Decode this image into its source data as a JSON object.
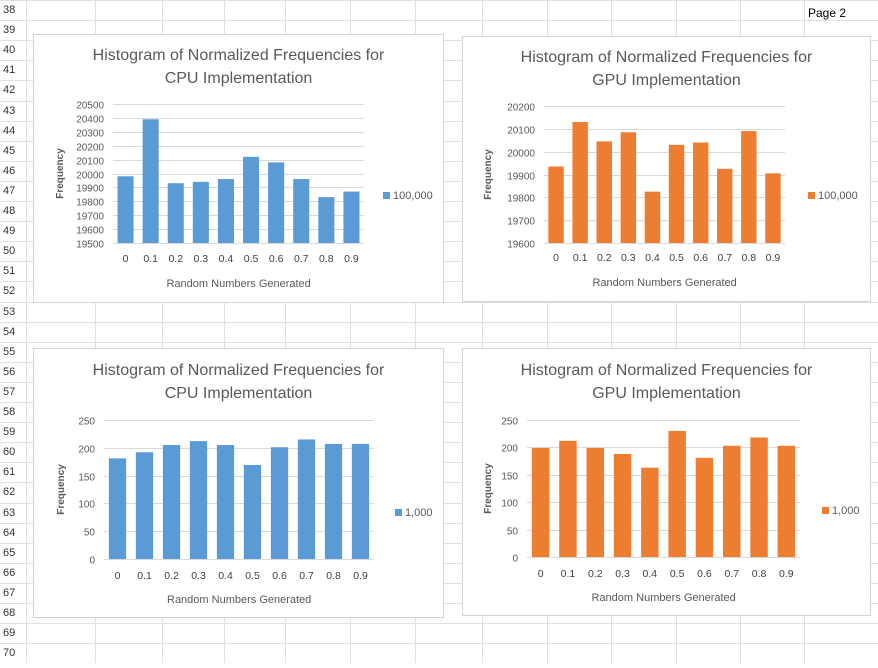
{
  "sheet": {
    "row_numbers": [
      "38",
      "39",
      "40",
      "41",
      "42",
      "43",
      "44",
      "45",
      "46",
      "47",
      "48",
      "49",
      "50",
      "51",
      "52",
      "53",
      "54",
      "55",
      "56",
      "57",
      "58",
      "59",
      "60",
      "61",
      "62",
      "63",
      "64",
      "65",
      "66",
      "67",
      "68",
      "69",
      "70"
    ],
    "page_label": "Page 2"
  },
  "colors": {
    "cpu": "#5B9BD5",
    "gpu": "#ED7D31",
    "grid": "#D9D9D9",
    "text": "#595959"
  },
  "charts": [
    {
      "title1": "Histogram of Normalized Frequencies for",
      "title2": "CPU Implementation",
      "ylabel": "Frequency",
      "xlabel": "Random Numbers Generated",
      "legend": "100,000",
      "color": "cpu"
    },
    {
      "title1": "Histogram of Normalized Frequencies for",
      "title2": "GPU Implementation",
      "ylabel": "Frequency",
      "xlabel": "Random Numbers Generated",
      "legend": "100,000",
      "color": "gpu"
    },
    {
      "title1": "Histogram of Normalized Frequencies for",
      "title2": "CPU Implementation",
      "ylabel": "Frequency",
      "xlabel": "Random Numbers Generated",
      "legend": "1,000",
      "color": "cpu"
    },
    {
      "title1": "Histogram of Normalized Frequencies for",
      "title2": "GPU Implementation",
      "ylabel": "Frequency",
      "xlabel": "Random Numbers Generated",
      "legend": "1,000",
      "color": "gpu"
    }
  ],
  "chart_data": [
    {
      "type": "bar",
      "title": "Histogram of Normalized Frequencies for CPU Implementation",
      "xlabel": "Random Numbers Generated",
      "ylabel": "Frequency",
      "categories": [
        "0",
        "0.1",
        "0.2",
        "0.3",
        "0.4",
        "0.5",
        "0.6",
        "0.7",
        "0.8",
        "0.9"
      ],
      "series": [
        {
          "name": "100,000",
          "values": [
            19980,
            20390,
            19930,
            19940,
            19960,
            20120,
            20080,
            19960,
            19830,
            19870
          ]
        }
      ],
      "ylim": [
        19500,
        20500
      ],
      "yticks": [
        19500,
        19600,
        19700,
        19800,
        19900,
        20000,
        20100,
        20200,
        20300,
        20400,
        20500
      ],
      "grid": true,
      "legend": "right"
    },
    {
      "type": "bar",
      "title": "Histogram of Normalized Frequencies for GPU Implementation",
      "xlabel": "Random Numbers Generated",
      "ylabel": "Frequency",
      "categories": [
        "0",
        "0.1",
        "0.2",
        "0.3",
        "0.4",
        "0.5",
        "0.6",
        "0.7",
        "0.8",
        "0.9"
      ],
      "series": [
        {
          "name": "100,000",
          "values": [
            19935,
            20130,
            20045,
            20085,
            19825,
            20030,
            20040,
            19925,
            20090,
            19905
          ]
        }
      ],
      "ylim": [
        19600,
        20200
      ],
      "yticks": [
        19600,
        19700,
        19800,
        19900,
        20000,
        20100,
        20200
      ],
      "grid": true,
      "legend": "right"
    },
    {
      "type": "bar",
      "title": "Histogram of Normalized Frequencies for CPU Implementation",
      "xlabel": "Random Numbers Generated",
      "ylabel": "Frequency",
      "categories": [
        "0",
        "0.1",
        "0.2",
        "0.3",
        "0.4",
        "0.5",
        "0.6",
        "0.7",
        "0.8",
        "0.9"
      ],
      "series": [
        {
          "name": "1,000",
          "values": [
            181,
            192,
            205,
            212,
            205,
            169,
            201,
            215,
            207,
            207
          ]
        }
      ],
      "ylim": [
        0,
        250
      ],
      "yticks": [
        0,
        50,
        100,
        150,
        200,
        250
      ],
      "grid": true,
      "legend": "right"
    },
    {
      "type": "bar",
      "title": "Histogram of Normalized Frequencies for GPU Implementation",
      "xlabel": "Random Numbers Generated",
      "ylabel": "Frequency",
      "categories": [
        "0",
        "0.1",
        "0.2",
        "0.3",
        "0.4",
        "0.5",
        "0.6",
        "0.7",
        "0.8",
        "0.9"
      ],
      "series": [
        {
          "name": "1,000",
          "values": [
            199,
            212,
            199,
            188,
            163,
            230,
            181,
            203,
            218,
            203
          ]
        }
      ],
      "ylim": [
        0,
        250
      ],
      "yticks": [
        0,
        50,
        100,
        150,
        200,
        250
      ],
      "grid": true,
      "legend": "right"
    }
  ]
}
